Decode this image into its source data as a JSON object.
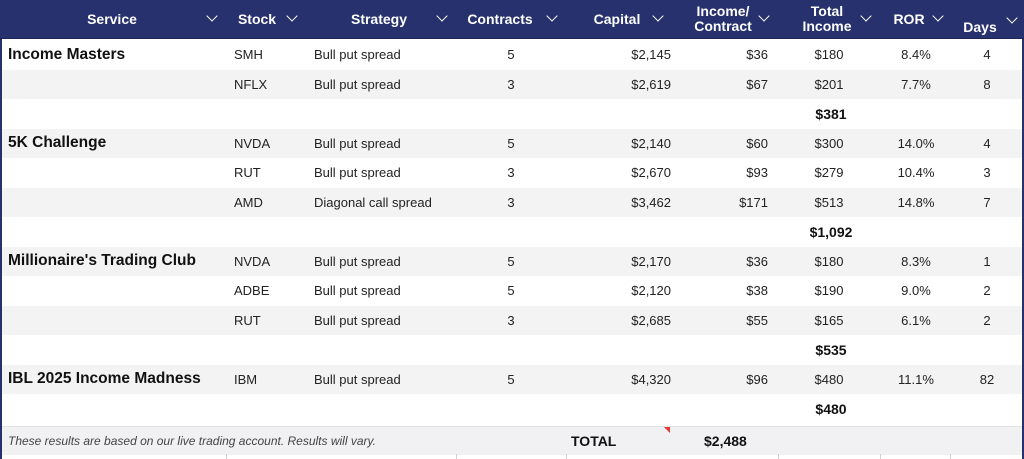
{
  "headers": {
    "service": "Service",
    "stock": "Stock",
    "strategy": "Strategy",
    "contracts": "Contracts",
    "capital": "Capital",
    "income_per_contract_line1": "Income/",
    "income_per_contract_line2": "Contract",
    "total_income_line1": "Total",
    "total_income_line2": "Income",
    "ror": "ROR",
    "days": "Days"
  },
  "groups": [
    {
      "service": "Income Masters",
      "rows": [
        {
          "stock": "SMH",
          "strategy": "Bull put spread",
          "contracts": "5",
          "capital": "$2,145",
          "income_per_contract": "$36",
          "total_income": "$180",
          "ror": "8.4%",
          "days": "4"
        },
        {
          "stock": "NFLX",
          "strategy": "Bull put spread",
          "contracts": "3",
          "capital": "$2,619",
          "income_per_contract": "$67",
          "total_income": "$201",
          "ror": "7.7%",
          "days": "8"
        }
      ],
      "subtotal": "$381"
    },
    {
      "service": "5K Challenge",
      "rows": [
        {
          "stock": "NVDA",
          "strategy": "Bull put spread",
          "contracts": "5",
          "capital": "$2,140",
          "income_per_contract": "$60",
          "total_income": "$300",
          "ror": "14.0%",
          "days": "4"
        },
        {
          "stock": "RUT",
          "strategy": "Bull put spread",
          "contracts": "3",
          "capital": "$2,670",
          "income_per_contract": "$93",
          "total_income": "$279",
          "ror": "10.4%",
          "days": "3"
        },
        {
          "stock": "AMD",
          "strategy": "Diagonal call spread",
          "contracts": "3",
          "capital": "$3,462",
          "income_per_contract": "$171",
          "total_income": "$513",
          "ror": "14.8%",
          "days": "7"
        }
      ],
      "subtotal": "$1,092"
    },
    {
      "service": "Millionaire's Trading Club",
      "rows": [
        {
          "stock": "NVDA",
          "strategy": "Bull put spread",
          "contracts": "5",
          "capital": "$2,170",
          "income_per_contract": "$36",
          "total_income": "$180",
          "ror": "8.3%",
          "days": "1"
        },
        {
          "stock": "ADBE",
          "strategy": "Bull put spread",
          "contracts": "5",
          "capital": "$2,120",
          "income_per_contract": "$38",
          "total_income": "$190",
          "ror": "9.0%",
          "days": "2"
        },
        {
          "stock": "RUT",
          "strategy": "Bull put spread",
          "contracts": "3",
          "capital": "$2,685",
          "income_per_contract": "$55",
          "total_income": "$165",
          "ror": "6.1%",
          "days": "2"
        }
      ],
      "subtotal": "$535"
    },
    {
      "service": "IBL 2025 Income Madness",
      "rows": [
        {
          "stock": "IBM",
          "strategy": "Bull put spread",
          "contracts": "5",
          "capital": "$4,320",
          "income_per_contract": "$96",
          "total_income": "$480",
          "ror": "11.1%",
          "days": "82"
        }
      ],
      "subtotal": "$480"
    }
  ],
  "footer": {
    "disclaimer": "These results are based on our live trading account. Results will vary.",
    "total_label": "TOTAL",
    "total_value": "$2,488"
  },
  "colors": {
    "header_bg": "#26316e",
    "alt_row": "#f3f3f3",
    "comment_marker": "#e53935"
  },
  "icons": {
    "filter": "chevron-down-icon",
    "comment": "comment-marker-icon"
  }
}
